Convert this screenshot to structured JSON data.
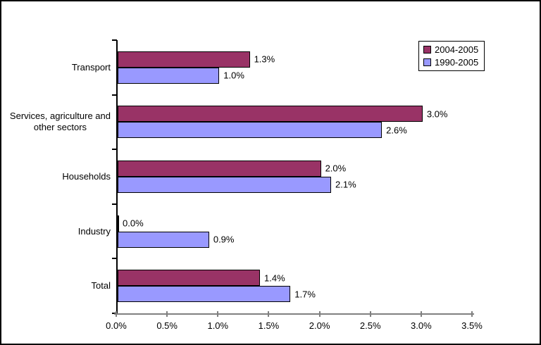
{
  "frame": {
    "background": "#ffffff",
    "border_color": "#000000"
  },
  "chart_data": {
    "type": "bar",
    "orientation": "horizontal",
    "title": "",
    "xlabel": "",
    "ylabel": "",
    "categories": [
      "Transport",
      "Services, agriculture and\nother sectors",
      "Households",
      "Industry",
      "Total"
    ],
    "series": [
      {
        "name": "2004-2005",
        "color": "#993366",
        "values": [
          1.3,
          3.0,
          2.0,
          0.0,
          1.4
        ],
        "labels": [
          "1.3%",
          "3.0%",
          "2.0%",
          "0.0%",
          "1.4%"
        ]
      },
      {
        "name": "1990-2005",
        "color": "#9999FF",
        "values": [
          1.0,
          2.6,
          2.1,
          0.9,
          1.7
        ],
        "labels": [
          "1.0%",
          "2.6%",
          "2.1%",
          "0.9%",
          "1.7%"
        ]
      }
    ],
    "xlim": [
      0,
      3.5
    ],
    "x_ticks": [
      "0.0%",
      "0.5%",
      "1.0%",
      "1.5%",
      "2.0%",
      "2.5%",
      "3.0%",
      "3.5%"
    ],
    "grid": false,
    "legend": {
      "position": "top-right",
      "entries": [
        "2004-2005",
        "1990-2005"
      ]
    },
    "axis_colors": {
      "y_axis": "#000000",
      "x_axis": "#808080"
    },
    "bar_border_color": "#000000"
  }
}
